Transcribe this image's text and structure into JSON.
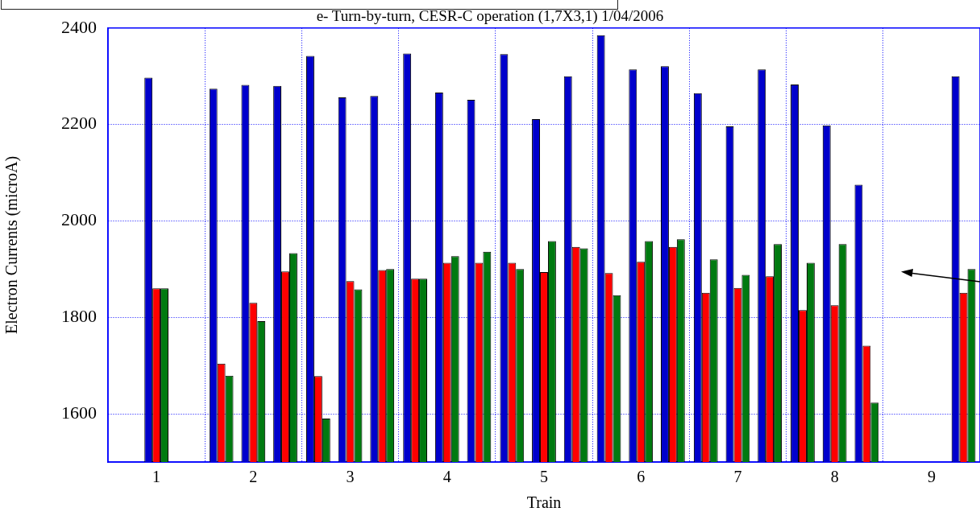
{
  "chart_data": {
    "type": "bar",
    "title": "e- Turn-by-turn, CESR-C operation (1,7X3,1) 1/04/2006",
    "xlabel": "Train",
    "ylabel": "Electron Currents (microA)",
    "x": [
      1,
      1.67,
      2,
      2.33,
      2.67,
      3,
      3.33,
      3.67,
      4,
      4.33,
      4.67,
      5,
      5.33,
      5.67,
      6,
      6.33,
      6.67,
      7,
      7.33,
      7.67,
      8,
      8.33,
      9.33
    ],
    "series": [
      {
        "color": "#0000cc",
        "values": [
          2297,
          2274,
          2282,
          2280,
          2342,
          2256,
          2259,
          2347,
          2266,
          2251,
          2346,
          2211,
          2300,
          2385,
          2314,
          2321,
          2265,
          2196,
          2314,
          2283,
          2198,
          2075,
          2300
        ]
      },
      {
        "color": "#ff0000",
        "values": [
          1860,
          1704,
          1830,
          1895,
          1678,
          1875,
          1898,
          1880,
          1913,
          1913,
          1913,
          1894,
          1946,
          1892,
          1915,
          1946,
          1851,
          1861,
          1885,
          1815,
          1825,
          1741,
          1851
        ]
      },
      {
        "color": "#007a10",
        "values": [
          1860,
          1679,
          1792,
          1933,
          1590,
          1858,
          1900,
          1880,
          1927,
          1936,
          1900,
          1958,
          1943,
          1846,
          1958,
          1962,
          1920,
          1888,
          1952,
          1913,
          1952,
          1623,
          1900
        ]
      }
    ],
    "xlim": [
      0.5,
      9.5
    ],
    "xticks": [
      1,
      {
        "value": 1.5,
        "label": null
      },
      2,
      {
        "value": 2.5,
        "label": null
      },
      3,
      {
        "value": 3.5,
        "label": null
      },
      4,
      {
        "value": 4.5,
        "label": null
      },
      5,
      {
        "value": 5.5,
        "label": null
      },
      6,
      {
        "value": 6.5,
        "label": null
      },
      7,
      {
        "value": 7.5,
        "label": null
      },
      8,
      {
        "value": 8.5,
        "label": null
      },
      9
    ],
    "ylim": [
      1500,
      2400
    ],
    "yticks": [
      1600,
      1800,
      2000,
      2200,
      2400
    ],
    "grid": true,
    "legend": false
  }
}
